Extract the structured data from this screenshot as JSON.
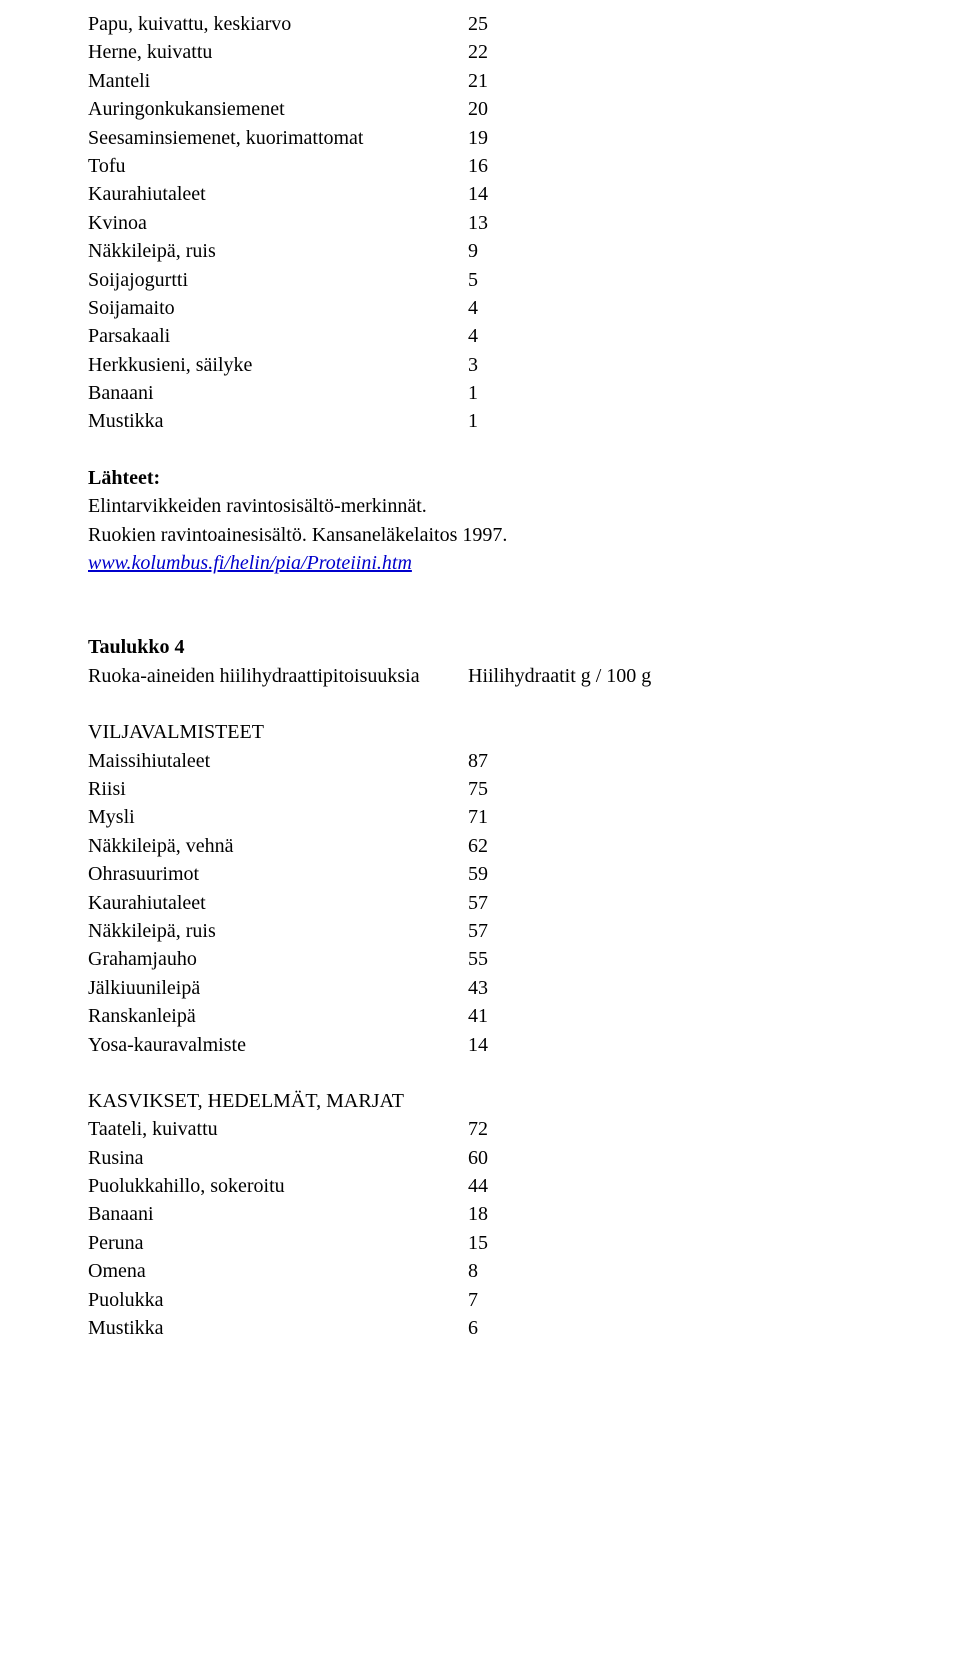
{
  "table1_rows": [
    {
      "label": "Papu, kuivattu, keskiarvo",
      "value": "25"
    },
    {
      "label": "Herne, kuivattu",
      "value": "22"
    },
    {
      "label": "Manteli",
      "value": "21"
    },
    {
      "label": "Auringonkukansiemenet",
      "value": "20"
    },
    {
      "label": "Seesaminsiemenet, kuorimattomat",
      "value": "19"
    },
    {
      "label": "Tofu",
      "value": "16"
    },
    {
      "label": "Kaurahiutaleet",
      "value": "14"
    },
    {
      "label": "Kvinoa",
      "value": "13"
    },
    {
      "label": "Näkkileipä, ruis",
      "value": "9"
    },
    {
      "label": "Soijajogurtti",
      "value": "5"
    },
    {
      "label": "Soijamaito",
      "value": "4"
    },
    {
      "label": "Parsakaali",
      "value": "4"
    },
    {
      "label": "Herkkusieni, säilyke",
      "value": "3"
    },
    {
      "label": "Banaani",
      "value": "1"
    },
    {
      "label": "Mustikka",
      "value": "1"
    }
  ],
  "sources": {
    "heading": "Lähteet:",
    "line1": "Elintarvikkeiden ravintosisältö-merkinnät.",
    "line2": "Ruokien ravintoainesisältö. Kansaneläkelaitos 1997.",
    "link": "www.kolumbus.fi/helin/pia/Proteiini.htm"
  },
  "table4": {
    "title": "Taulukko 4",
    "subtitle_left": "Ruoka-aineiden hiilihydraattipitoisuuksia",
    "subtitle_right": "Hiilihydraatit g / 100 g",
    "section1_heading": "VILJAVALMISTEET",
    "section1_rows": [
      {
        "label": "Maissihiutaleet",
        "value": "87"
      },
      {
        "label": "Riisi",
        "value": "75"
      },
      {
        "label": "Mysli",
        "value": "71"
      },
      {
        "label": "Näkkileipä, vehnä",
        "value": "62"
      },
      {
        "label": "Ohrasuurimot",
        "value": "59"
      },
      {
        "label": "Kaurahiutaleet",
        "value": "57"
      },
      {
        "label": "Näkkileipä, ruis",
        "value": "57"
      },
      {
        "label": "Grahamjauho",
        "value": "55"
      },
      {
        "label": "Jälkiuunileipä",
        "value": "43"
      },
      {
        "label": "Ranskanleipä",
        "value": "41"
      },
      {
        "label": "Yosa-kauravalmiste",
        "value": "14"
      }
    ],
    "section2_heading": "KASVIKSET, HEDELMÄT, MARJAT",
    "section2_rows": [
      {
        "label": "Taateli, kuivattu",
        "value": "72"
      },
      {
        "label": "Rusina",
        "value": "60"
      },
      {
        "label": "Puolukkahillo, sokeroitu",
        "value": "44"
      },
      {
        "label": "Banaani",
        "value": "18"
      },
      {
        "label": "Peruna",
        "value": "15"
      },
      {
        "label": "Omena",
        "value": "8"
      },
      {
        "label": "Puolukka",
        "value": "7"
      },
      {
        "label": "Mustikka",
        "value": "6"
      }
    ]
  }
}
